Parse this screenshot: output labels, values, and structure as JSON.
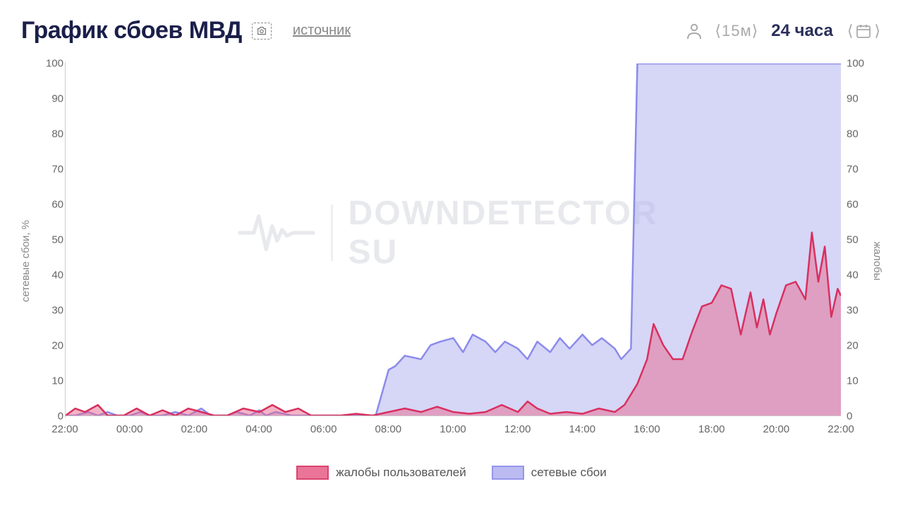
{
  "header": {
    "title": "График сбоев МВД",
    "source_link": "источник",
    "interval": "⟨15м⟩",
    "range": "24 часа"
  },
  "watermark": {
    "text": "DOWNDETECTOR SU"
  },
  "chart": {
    "type": "area-line",
    "background_color": "#ffffff",
    "grid_color": "#dddddd",
    "axis_color": "#cccccc",
    "tick_color": "#666666",
    "tick_fontsize": 15,
    "label_fontsize": 15,
    "y_axis_left": {
      "label": "сетевые сбои, %",
      "min": 0,
      "max": 100,
      "step": 10
    },
    "y_axis_right": {
      "label": "жалобы",
      "min": 0,
      "max": 100,
      "step": 10
    },
    "x_axis": {
      "labels": [
        "22:00",
        "00:00",
        "02:00",
        "04:00",
        "06:00",
        "08:00",
        "10:00",
        "12:00",
        "14:00",
        "16:00",
        "18:00",
        "20:00",
        "22:00"
      ]
    },
    "series": {
      "network": {
        "label": "сетевые сбои",
        "stroke": "#8b8beb",
        "fill": "#b4b4f0",
        "fill_opacity": 0.55,
        "line_width": 2.5,
        "points": [
          [
            0,
            0
          ],
          [
            0.3,
            0
          ],
          [
            0.7,
            1
          ],
          [
            1.0,
            0
          ],
          [
            1.3,
            1
          ],
          [
            1.6,
            0
          ],
          [
            2.0,
            0
          ],
          [
            2.3,
            1
          ],
          [
            2.6,
            0
          ],
          [
            3.0,
            0
          ],
          [
            3.4,
            1
          ],
          [
            3.8,
            0
          ],
          [
            4.2,
            2
          ],
          [
            4.5,
            0
          ],
          [
            5.0,
            0
          ],
          [
            5.3,
            1
          ],
          [
            5.7,
            0
          ],
          [
            6.0,
            1.5
          ],
          [
            6.2,
            0
          ],
          [
            6.5,
            1
          ],
          [
            7.0,
            0
          ],
          [
            7.5,
            0
          ],
          [
            8.0,
            0
          ],
          [
            9.0,
            0
          ],
          [
            9.6,
            0
          ],
          [
            10.0,
            13
          ],
          [
            10.2,
            14
          ],
          [
            10.5,
            17
          ],
          [
            11.0,
            16
          ],
          [
            11.3,
            20
          ],
          [
            11.6,
            21
          ],
          [
            12.0,
            22
          ],
          [
            12.3,
            18
          ],
          [
            12.6,
            23
          ],
          [
            13.0,
            21
          ],
          [
            13.3,
            18
          ],
          [
            13.6,
            21
          ],
          [
            14.0,
            19
          ],
          [
            14.3,
            16
          ],
          [
            14.6,
            21
          ],
          [
            15.0,
            18
          ],
          [
            15.3,
            22
          ],
          [
            15.6,
            19
          ],
          [
            16.0,
            23
          ],
          [
            16.3,
            20
          ],
          [
            16.6,
            22
          ],
          [
            17.0,
            19
          ],
          [
            17.2,
            16
          ],
          [
            17.5,
            19
          ],
          [
            17.7,
            100
          ],
          [
            18.0,
            100
          ],
          [
            19.0,
            100
          ],
          [
            20.0,
            100
          ],
          [
            21.0,
            100
          ],
          [
            22.0,
            100
          ],
          [
            23.0,
            100
          ],
          [
            24.0,
            100
          ]
        ]
      },
      "complaints": {
        "label": "жалобы пользователей",
        "stroke": "#d8305f",
        "fill": "#e8678e",
        "fill_opacity": 0.5,
        "line_width": 2.5,
        "points": [
          [
            0,
            0
          ],
          [
            0.3,
            2
          ],
          [
            0.6,
            1
          ],
          [
            1.0,
            3
          ],
          [
            1.3,
            0
          ],
          [
            1.8,
            0
          ],
          [
            2.2,
            2
          ],
          [
            2.6,
            0
          ],
          [
            3.0,
            1.5
          ],
          [
            3.4,
            0
          ],
          [
            3.8,
            2
          ],
          [
            4.2,
            1
          ],
          [
            4.6,
            0
          ],
          [
            5.0,
            0
          ],
          [
            5.5,
            2
          ],
          [
            6.0,
            1
          ],
          [
            6.4,
            3
          ],
          [
            6.8,
            1
          ],
          [
            7.2,
            2
          ],
          [
            7.6,
            0
          ],
          [
            8.0,
            0
          ],
          [
            8.5,
            0
          ],
          [
            9.0,
            0.5
          ],
          [
            9.5,
            0
          ],
          [
            10.0,
            1
          ],
          [
            10.5,
            2
          ],
          [
            11.0,
            1
          ],
          [
            11.5,
            2.5
          ],
          [
            12.0,
            1
          ],
          [
            12.5,
            0.5
          ],
          [
            13.0,
            1
          ],
          [
            13.5,
            3
          ],
          [
            14.0,
            1
          ],
          [
            14.3,
            4
          ],
          [
            14.6,
            2
          ],
          [
            15.0,
            0.5
          ],
          [
            15.5,
            1
          ],
          [
            16.0,
            0.5
          ],
          [
            16.5,
            2
          ],
          [
            17.0,
            1
          ],
          [
            17.3,
            3
          ],
          [
            17.7,
            9
          ],
          [
            18.0,
            16
          ],
          [
            18.2,
            26
          ],
          [
            18.5,
            20
          ],
          [
            18.8,
            16
          ],
          [
            19.1,
            16
          ],
          [
            19.4,
            24
          ],
          [
            19.7,
            31
          ],
          [
            20.0,
            32
          ],
          [
            20.3,
            37
          ],
          [
            20.6,
            36
          ],
          [
            20.9,
            23
          ],
          [
            21.2,
            35
          ],
          [
            21.4,
            25
          ],
          [
            21.6,
            33
          ],
          [
            21.8,
            23
          ],
          [
            22.0,
            29
          ],
          [
            22.3,
            37
          ],
          [
            22.6,
            38
          ],
          [
            22.9,
            33
          ],
          [
            23.1,
            52
          ],
          [
            23.3,
            38
          ],
          [
            23.5,
            48
          ],
          [
            23.7,
            28
          ],
          [
            23.9,
            36
          ],
          [
            24.0,
            34
          ]
        ]
      }
    }
  },
  "legend": {
    "items": [
      {
        "key": "complaints",
        "label": "жалобы пользователей"
      },
      {
        "key": "network",
        "label": "сетевые сбои"
      }
    ]
  }
}
